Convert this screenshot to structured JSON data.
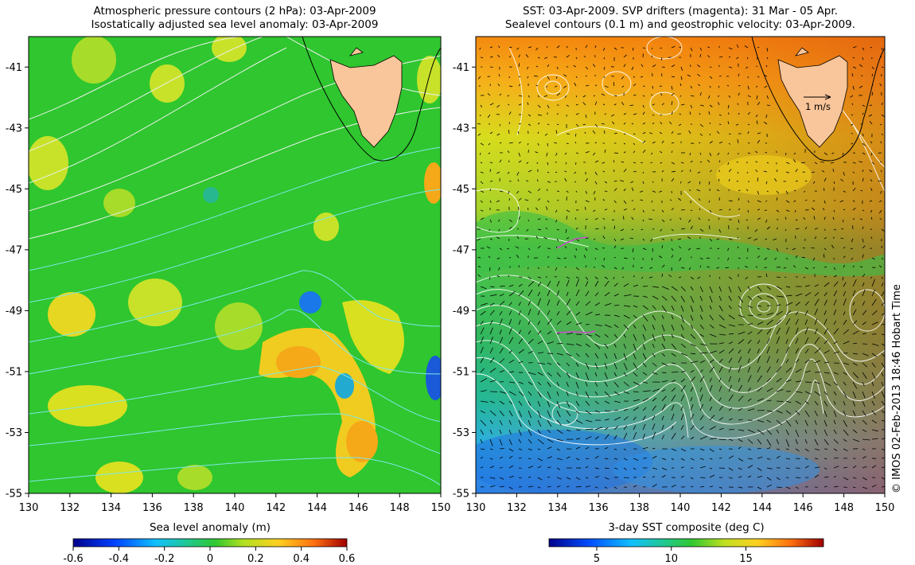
{
  "left_panel": {
    "title_line1": "Atmospheric pressure contours (2 hPa): 03-Apr-2009",
    "title_line2": "Isostatically adjusted sea level anomaly: 03-Apr-2009",
    "colorbar_label": "Sea level anomaly (m)",
    "colorbar_ticks": [
      "-0.6",
      "-0.4",
      "-0.2",
      "0",
      "0.2",
      "0.4",
      "0.6"
    ]
  },
  "right_panel": {
    "title_line1": "SST: 03-Apr-2009. SVP drifters (magenta): 31 Mar - 05 Apr.",
    "title_line2": "Sealevel contours (0.1 m) and geostrophic velocity: 03-Apr-2009.",
    "colorbar_label": "3-day SST composite (deg C)",
    "colorbar_ticks": [
      "5",
      "10",
      "15"
    ],
    "scale_arrow_label": "1 m/s"
  },
  "lat_ticks": [
    "-41",
    "-43",
    "-45",
    "-47",
    "-49",
    "-51",
    "-53",
    "-55"
  ],
  "lon_ticks": [
    "130",
    "132",
    "134",
    "136",
    "138",
    "140",
    "142",
    "144",
    "146",
    "148",
    "150"
  ],
  "credit": "© IMOS 02-Feb-2013 18:46 Hobart Time",
  "colors": {
    "land": "#f9c59a",
    "sla_base": "#2fc62f",
    "sst_warm": "#ff9a10",
    "sst_cool": "#2aa8ea",
    "drifter": "#d04ad0",
    "pressure_contour": "#40e0e0"
  }
}
